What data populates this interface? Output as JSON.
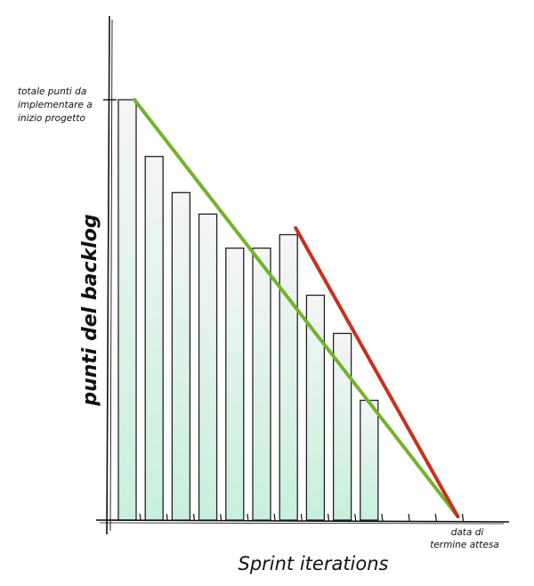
{
  "chart_data": {
    "type": "bar",
    "title": "",
    "ylabel": "punti del backlog",
    "xlabel": "Sprint iterations",
    "y_max_annotation": [
      "totale punti da",
      "implementare a",
      "inizio progetto"
    ],
    "end_date_annotation": [
      "data di",
      "termine attesa"
    ],
    "sprint_count": 13,
    "values": [
      100,
      86.5,
      77.9,
      72.8,
      64.7,
      64.7,
      67.9,
      53.5,
      44.4,
      28.5
    ],
    "ylim": [
      0,
      100
    ],
    "grid": false,
    "ideal_line": {
      "from_sprint": 1,
      "from_value": 100,
      "to_sprint": 13,
      "to_value": 0,
      "color": "#73b32d"
    },
    "revised_line": {
      "from_sprint": 7,
      "from_value": 69.5,
      "to_sprint": 13,
      "to_value": 0,
      "color": "#c8301f"
    },
    "bar_gradient": [
      "#f5f5f5",
      "#c7f0dc"
    ]
  }
}
